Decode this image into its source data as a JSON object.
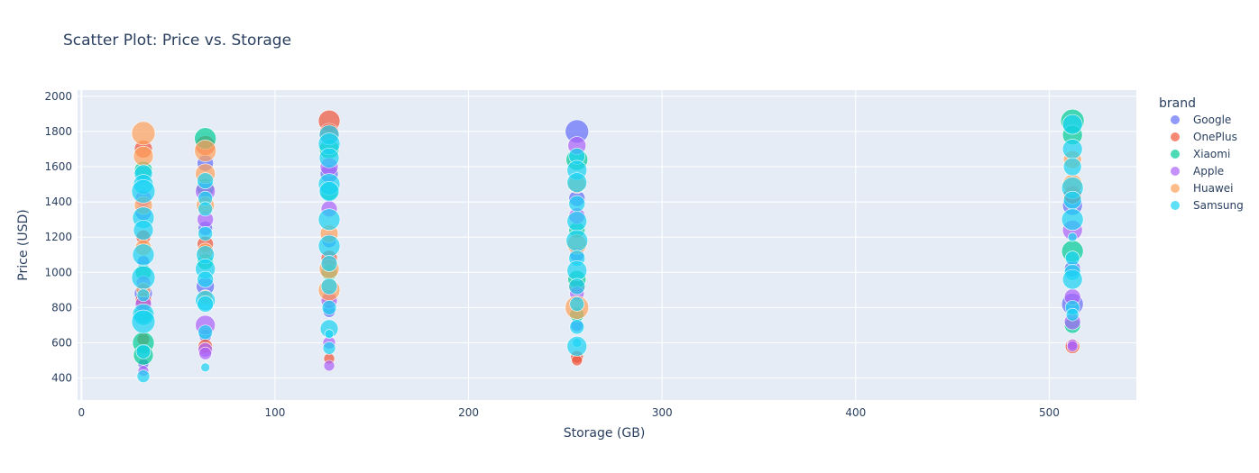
{
  "chart_data": {
    "type": "scatter",
    "title": "Scatter Plot: Price vs. Storage",
    "xlabel": "Storage (GB)",
    "ylabel": "Price (USD)",
    "xlim": [
      -2,
      545
    ],
    "ylim": [
      275,
      2035
    ],
    "x_ticks": [
      0,
      100,
      200,
      300,
      400,
      500
    ],
    "y_ticks": [
      400,
      600,
      800,
      1000,
      1200,
      1400,
      1600,
      1800,
      2000
    ],
    "grid": true,
    "legend_title": "brand",
    "legend_position": "right",
    "marker_opacity": 0.7,
    "series": [
      {
        "name": "Google",
        "color": "#636efa",
        "points": [
          {
            "x": 32,
            "y": 1340,
            "s": 9
          },
          {
            "x": 32,
            "y": 1060,
            "s": 7
          },
          {
            "x": 32,
            "y": 880,
            "s": 10
          },
          {
            "x": 32,
            "y": 480,
            "s": 6
          },
          {
            "x": 64,
            "y": 1620,
            "s": 9
          },
          {
            "x": 64,
            "y": 1250,
            "s": 8
          },
          {
            "x": 64,
            "y": 920,
            "s": 10
          },
          {
            "x": 64,
            "y": 640,
            "s": 7
          },
          {
            "x": 128,
            "y": 1560,
            "s": 10
          },
          {
            "x": 128,
            "y": 1180,
            "s": 8
          },
          {
            "x": 128,
            "y": 780,
            "s": 7
          },
          {
            "x": 256,
            "y": 1800,
            "s": 13
          },
          {
            "x": 256,
            "y": 1420,
            "s": 9
          },
          {
            "x": 256,
            "y": 1100,
            "s": 8
          },
          {
            "x": 256,
            "y": 700,
            "s": 7
          },
          {
            "x": 512,
            "y": 1380,
            "s": 11
          },
          {
            "x": 512,
            "y": 1020,
            "s": 9
          },
          {
            "x": 512,
            "y": 820,
            "s": 12
          }
        ]
      },
      {
        "name": "OnePlus",
        "color": "#ef553b",
        "points": [
          {
            "x": 32,
            "y": 1700,
            "s": 10
          },
          {
            "x": 32,
            "y": 1200,
            "s": 8
          },
          {
            "x": 32,
            "y": 840,
            "s": 9
          },
          {
            "x": 32,
            "y": 620,
            "s": 7
          },
          {
            "x": 64,
            "y": 1720,
            "s": 11
          },
          {
            "x": 64,
            "y": 1160,
            "s": 9
          },
          {
            "x": 64,
            "y": 580,
            "s": 8
          },
          {
            "x": 128,
            "y": 1860,
            "s": 12
          },
          {
            "x": 128,
            "y": 1790,
            "s": 11
          },
          {
            "x": 128,
            "y": 1080,
            "s": 9
          },
          {
            "x": 128,
            "y": 860,
            "s": 8
          },
          {
            "x": 128,
            "y": 510,
            "s": 6
          },
          {
            "x": 256,
            "y": 920,
            "s": 9
          },
          {
            "x": 256,
            "y": 520,
            "s": 7
          },
          {
            "x": 256,
            "y": 500,
            "s": 6
          },
          {
            "x": 512,
            "y": 1440,
            "s": 10
          },
          {
            "x": 512,
            "y": 580,
            "s": 8
          }
        ]
      },
      {
        "name": "Xiaomi",
        "color": "#00cc96",
        "points": [
          {
            "x": 32,
            "y": 1580,
            "s": 10
          },
          {
            "x": 32,
            "y": 1000,
            "s": 9
          },
          {
            "x": 32,
            "y": 760,
            "s": 10
          },
          {
            "x": 32,
            "y": 600,
            "s": 12
          },
          {
            "x": 32,
            "y": 530,
            "s": 11
          },
          {
            "x": 64,
            "y": 1760,
            "s": 12
          },
          {
            "x": 64,
            "y": 1480,
            "s": 10
          },
          {
            "x": 64,
            "y": 1060,
            "s": 9
          },
          {
            "x": 128,
            "y": 1700,
            "s": 11
          },
          {
            "x": 128,
            "y": 1460,
            "s": 10
          },
          {
            "x": 128,
            "y": 1000,
            "s": 9
          },
          {
            "x": 256,
            "y": 1640,
            "s": 12
          },
          {
            "x": 256,
            "y": 1240,
            "s": 9
          },
          {
            "x": 256,
            "y": 960,
            "s": 10
          },
          {
            "x": 256,
            "y": 760,
            "s": 8
          },
          {
            "x": 512,
            "y": 1860,
            "s": 13
          },
          {
            "x": 512,
            "y": 1780,
            "s": 11
          },
          {
            "x": 512,
            "y": 1120,
            "s": 12
          },
          {
            "x": 512,
            "y": 700,
            "s": 9
          }
        ]
      },
      {
        "name": "Apple",
        "color": "#ab63fa",
        "points": [
          {
            "x": 32,
            "y": 1420,
            "s": 9
          },
          {
            "x": 32,
            "y": 940,
            "s": 8
          },
          {
            "x": 32,
            "y": 820,
            "s": 9
          },
          {
            "x": 32,
            "y": 440,
            "s": 6
          },
          {
            "x": 64,
            "y": 1460,
            "s": 11
          },
          {
            "x": 64,
            "y": 1300,
            "s": 9
          },
          {
            "x": 64,
            "y": 700,
            "s": 11
          },
          {
            "x": 64,
            "y": 560,
            "s": 8
          },
          {
            "x": 64,
            "y": 540,
            "s": 7
          },
          {
            "x": 128,
            "y": 1600,
            "s": 10
          },
          {
            "x": 128,
            "y": 1360,
            "s": 9
          },
          {
            "x": 128,
            "y": 840,
            "s": 9
          },
          {
            "x": 128,
            "y": 600,
            "s": 7
          },
          {
            "x": 128,
            "y": 470,
            "s": 6
          },
          {
            "x": 256,
            "y": 1720,
            "s": 10
          },
          {
            "x": 256,
            "y": 1320,
            "s": 9
          },
          {
            "x": 256,
            "y": 880,
            "s": 8
          },
          {
            "x": 512,
            "y": 1240,
            "s": 11
          },
          {
            "x": 512,
            "y": 860,
            "s": 9
          },
          {
            "x": 512,
            "y": 720,
            "s": 9
          },
          {
            "x": 512,
            "y": 590,
            "s": 6
          },
          {
            "x": 512,
            "y": 580,
            "s": 6
          }
        ]
      },
      {
        "name": "Huawei",
        "color": "#ffa15a",
        "points": [
          {
            "x": 32,
            "y": 1790,
            "s": 13
          },
          {
            "x": 32,
            "y": 1660,
            "s": 11
          },
          {
            "x": 32,
            "y": 1380,
            "s": 10
          },
          {
            "x": 32,
            "y": 1140,
            "s": 9
          },
          {
            "x": 32,
            "y": 900,
            "s": 8
          },
          {
            "x": 64,
            "y": 1690,
            "s": 12
          },
          {
            "x": 64,
            "y": 1560,
            "s": 11
          },
          {
            "x": 64,
            "y": 1380,
            "s": 10
          },
          {
            "x": 64,
            "y": 1120,
            "s": 9
          },
          {
            "x": 64,
            "y": 860,
            "s": 8
          },
          {
            "x": 128,
            "y": 1220,
            "s": 10
          },
          {
            "x": 128,
            "y": 1020,
            "s": 11
          },
          {
            "x": 128,
            "y": 900,
            "s": 12
          },
          {
            "x": 256,
            "y": 1500,
            "s": 10
          },
          {
            "x": 256,
            "y": 1160,
            "s": 11
          },
          {
            "x": 256,
            "y": 800,
            "s": 13
          },
          {
            "x": 512,
            "y": 1640,
            "s": 10
          },
          {
            "x": 512,
            "y": 1500,
            "s": 11
          }
        ]
      },
      {
        "name": "Samsung",
        "color": "#19d3f3",
        "points": [
          {
            "x": 32,
            "y": 1560,
            "s": 10
          },
          {
            "x": 32,
            "y": 1500,
            "s": 11
          },
          {
            "x": 32,
            "y": 1460,
            "s": 13
          },
          {
            "x": 32,
            "y": 1310,
            "s": 12
          },
          {
            "x": 32,
            "y": 1240,
            "s": 11
          },
          {
            "x": 32,
            "y": 1100,
            "s": 12
          },
          {
            "x": 32,
            "y": 970,
            "s": 13
          },
          {
            "x": 32,
            "y": 870,
            "s": 7
          },
          {
            "x": 32,
            "y": 760,
            "s": 12
          },
          {
            "x": 32,
            "y": 720,
            "s": 13
          },
          {
            "x": 32,
            "y": 550,
            "s": 8
          },
          {
            "x": 32,
            "y": 410,
            "s": 7
          },
          {
            "x": 64,
            "y": 1520,
            "s": 9
          },
          {
            "x": 64,
            "y": 1420,
            "s": 8
          },
          {
            "x": 64,
            "y": 1360,
            "s": 8
          },
          {
            "x": 64,
            "y": 1220,
            "s": 8
          },
          {
            "x": 64,
            "y": 1100,
            "s": 10
          },
          {
            "x": 64,
            "y": 1020,
            "s": 11
          },
          {
            "x": 64,
            "y": 960,
            "s": 9
          },
          {
            "x": 64,
            "y": 840,
            "s": 11
          },
          {
            "x": 64,
            "y": 820,
            "s": 9
          },
          {
            "x": 64,
            "y": 660,
            "s": 8
          },
          {
            "x": 64,
            "y": 460,
            "s": 5
          },
          {
            "x": 128,
            "y": 1780,
            "s": 11
          },
          {
            "x": 128,
            "y": 1730,
            "s": 12
          },
          {
            "x": 128,
            "y": 1650,
            "s": 11
          },
          {
            "x": 128,
            "y": 1500,
            "s": 12
          },
          {
            "x": 128,
            "y": 1460,
            "s": 11
          },
          {
            "x": 128,
            "y": 1300,
            "s": 12
          },
          {
            "x": 128,
            "y": 1150,
            "s": 12
          },
          {
            "x": 128,
            "y": 1050,
            "s": 9
          },
          {
            "x": 128,
            "y": 920,
            "s": 9
          },
          {
            "x": 128,
            "y": 800,
            "s": 8
          },
          {
            "x": 128,
            "y": 680,
            "s": 10
          },
          {
            "x": 128,
            "y": 650,
            "s": 5
          },
          {
            "x": 128,
            "y": 570,
            "s": 7
          },
          {
            "x": 256,
            "y": 1660,
            "s": 9
          },
          {
            "x": 256,
            "y": 1580,
            "s": 11
          },
          {
            "x": 256,
            "y": 1510,
            "s": 11
          },
          {
            "x": 256,
            "y": 1390,
            "s": 9
          },
          {
            "x": 256,
            "y": 1290,
            "s": 11
          },
          {
            "x": 256,
            "y": 1180,
            "s": 12
          },
          {
            "x": 256,
            "y": 1080,
            "s": 9
          },
          {
            "x": 256,
            "y": 1010,
            "s": 11
          },
          {
            "x": 256,
            "y": 920,
            "s": 9
          },
          {
            "x": 256,
            "y": 820,
            "s": 8
          },
          {
            "x": 256,
            "y": 690,
            "s": 8
          },
          {
            "x": 256,
            "y": 600,
            "s": 5
          },
          {
            "x": 256,
            "y": 580,
            "s": 11
          },
          {
            "x": 512,
            "y": 1840,
            "s": 11
          },
          {
            "x": 512,
            "y": 1700,
            "s": 11
          },
          {
            "x": 512,
            "y": 1600,
            "s": 10
          },
          {
            "x": 512,
            "y": 1480,
            "s": 12
          },
          {
            "x": 512,
            "y": 1410,
            "s": 10
          },
          {
            "x": 512,
            "y": 1300,
            "s": 12
          },
          {
            "x": 512,
            "y": 1200,
            "s": 5
          },
          {
            "x": 512,
            "y": 1080,
            "s": 8
          },
          {
            "x": 512,
            "y": 1000,
            "s": 9
          },
          {
            "x": 512,
            "y": 960,
            "s": 11
          },
          {
            "x": 512,
            "y": 800,
            "s": 8
          },
          {
            "x": 512,
            "y": 760,
            "s": 7
          }
        ]
      }
    ]
  }
}
